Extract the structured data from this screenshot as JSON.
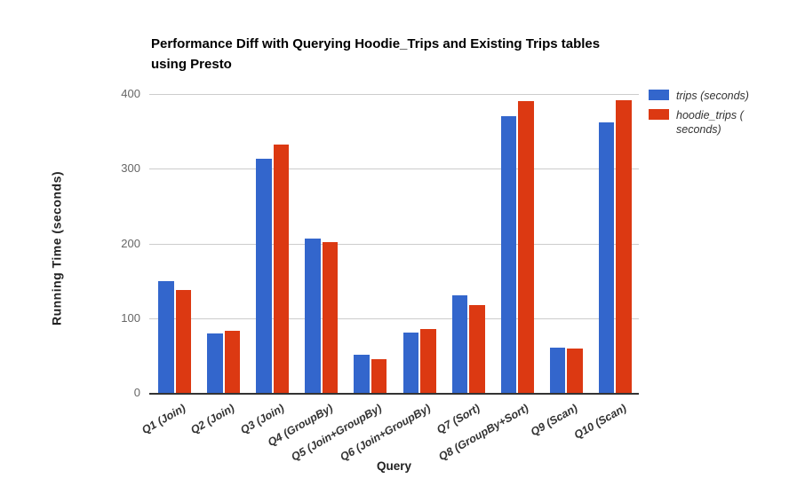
{
  "header": {
    "title_line1": "Performance Diff with Querying Hoodie_Trips and Existing Trips tables",
    "title_line2": "using Presto"
  },
  "colors": {
    "series_trips": "#3366CC",
    "series_hoodie_trips": "#DC3912",
    "gridline": "#CCCCCC",
    "axis_line": "#333333",
    "tick_label": "#666666",
    "category_label": "#333333"
  },
  "chart_data": {
    "type": "bar",
    "title": "Performance Diff with Querying Hoodie_Trips and Existing Trips tables using Presto",
    "xlabel": "Query",
    "ylabel": "Running Time (seconds)",
    "ylim": [
      0,
      400
    ],
    "yticks": [
      0,
      100,
      200,
      300,
      400
    ],
    "grid": true,
    "legend_position": "right",
    "categories": [
      "Q1 (Join)",
      "Q2 (Join)",
      "Q3 (Join)",
      "Q4 (GroupBy)",
      "Q5 (Join+GroupBy)",
      "Q6 (Join+GroupBy)",
      "Q7 (Sort)",
      "Q8 (GroupBy+Sort)",
      "Q9 (Scan)",
      "Q10 (Scan)"
    ],
    "series": [
      {
        "key": "trips",
        "name": "trips (seconds)",
        "color": "#3366CC",
        "values": [
          150,
          80,
          313,
          207,
          51,
          81,
          131,
          370,
          61,
          362
        ]
      },
      {
        "key": "hoodie_trips",
        "name": "hoodie_trips ( seconds)",
        "color": "#DC3912",
        "values": [
          138,
          83,
          332,
          202,
          45,
          85,
          117,
          390,
          59,
          392
        ]
      }
    ]
  }
}
